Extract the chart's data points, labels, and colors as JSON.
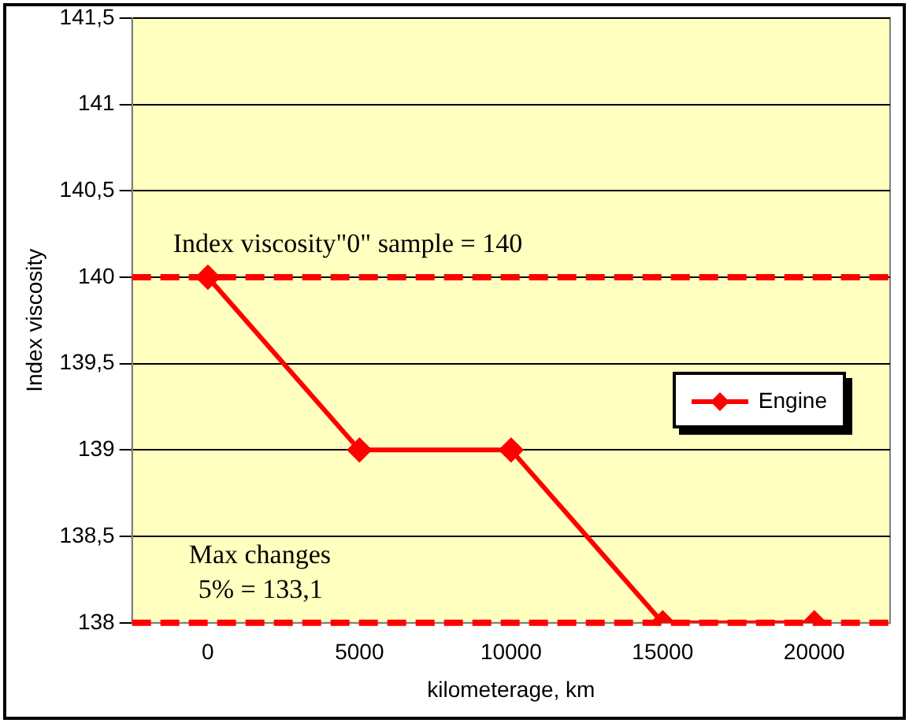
{
  "chart_data": {
    "type": "line",
    "xlabel": "kilometerage, km",
    "ylabel": "Index viscosity",
    "categories": [
      "0",
      "5000",
      "10000",
      "15000",
      "20000"
    ],
    "series": [
      {
        "name": "Engine",
        "color": "#ff0000",
        "values": [
          140,
          139,
          139,
          138,
          138
        ]
      }
    ],
    "ylim": [
      138,
      141.5
    ],
    "yticks": [
      138,
      {
        "value": 138.5,
        "label": "138,5"
      },
      139,
      {
        "value": 139.5,
        "label": "139,5"
      },
      140,
      {
        "value": 140.5,
        "label": "140,5"
      },
      141,
      {
        "value": 141.5,
        "label": "141,5"
      }
    ],
    "ref_lines": [
      {
        "axis": "y",
        "value": 140,
        "label": "Index viscosity\"0\" sample = 140",
        "color": "#ff0000",
        "line_style": "dashed"
      },
      {
        "axis": "y",
        "value": 138,
        "color": "#ff0000",
        "line_style": "dashed"
      }
    ],
    "annotations": [
      "Max changes 5% = 133,1"
    ],
    "grid": "y",
    "legend": "right",
    "marker": "diamond",
    "line_style": "solid"
  }
}
